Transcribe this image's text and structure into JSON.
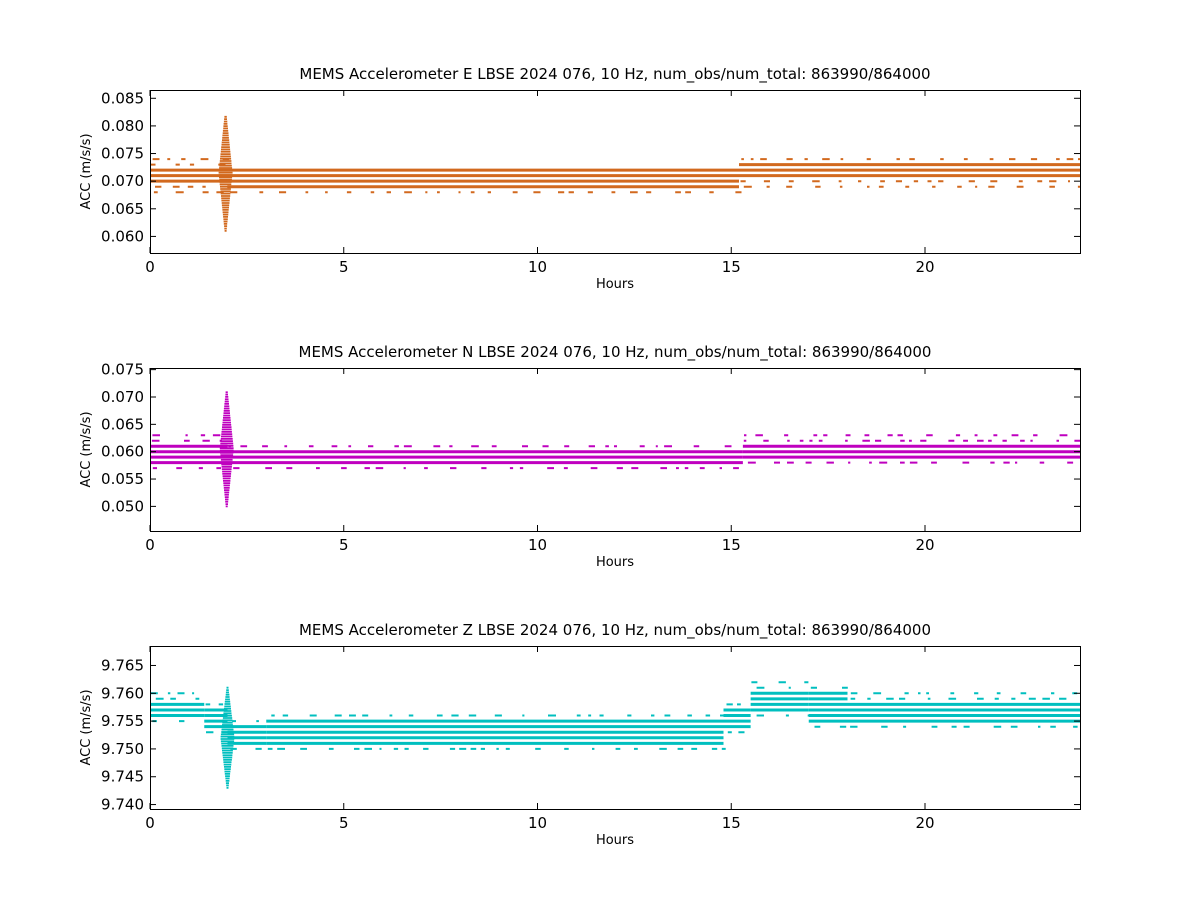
{
  "chart_data": [
    {
      "type": "scatter",
      "title": "MEMS Accelerometer E LBSE 2024 076, 10 Hz, num_obs/num_total: 863990/864000",
      "xlabel": "Hours",
      "ylabel": "ACC (m/s/s)",
      "xlim": [
        0,
        24
      ],
      "ylim": [
        0.057,
        0.0865
      ],
      "xticks": [
        0,
        5,
        10,
        15,
        20
      ],
      "yticks": [
        "0.060",
        "0.065",
        "0.070",
        "0.075",
        "0.080",
        "0.085"
      ],
      "grid": false,
      "color": "#d2691e",
      "series": [
        {
          "segments": [
            {
              "x": [
                0,
                2.0
              ],
              "dense": [
                0.07,
                0.071,
                0.072
              ],
              "sparse": [
                0.068,
                0.069,
                0.073,
                0.074
              ]
            },
            {
              "x": [
                2.0,
                15.2
              ],
              "dense": [
                0.069,
                0.07,
                0.071,
                0.072
              ],
              "sparse": [
                0.068
              ]
            },
            {
              "x": [
                15.2,
                24
              ],
              "dense": [
                0.071,
                0.072,
                0.073
              ],
              "sparse": [
                0.069,
                0.07,
                0.074
              ]
            }
          ],
          "burst": {
            "x": 1.95,
            "min": 0.061,
            "max": 0.082
          }
        }
      ]
    },
    {
      "type": "scatter",
      "title": "MEMS Accelerometer N LBSE 2024 076, 10 Hz, num_obs/num_total: 863990/864000",
      "xlabel": "Hours",
      "ylabel": "ACC (m/s/s)",
      "xlim": [
        0,
        24
      ],
      "ylim": [
        0.0455,
        0.0753
      ],
      "xticks": [
        0,
        5,
        10,
        15,
        20
      ],
      "yticks": [
        "0.050",
        "0.055",
        "0.060",
        "0.065",
        "0.070",
        "0.075"
      ],
      "grid": false,
      "color": "#bf00bf",
      "series": [
        {
          "segments": [
            {
              "x": [
                0,
                2.0
              ],
              "dense": [
                0.058,
                0.059,
                0.06,
                0.061
              ],
              "sparse": [
                0.057,
                0.062,
                0.063
              ]
            },
            {
              "x": [
                2.0,
                15.3
              ],
              "dense": [
                0.058,
                0.059,
                0.06
              ],
              "sparse": [
                0.057,
                0.061
              ]
            },
            {
              "x": [
                15.3,
                24
              ],
              "dense": [
                0.059,
                0.06,
                0.061
              ],
              "sparse": [
                0.058,
                0.062,
                0.063
              ]
            }
          ],
          "burst": {
            "x": 1.98,
            "min": 0.05,
            "max": 0.071
          }
        }
      ]
    },
    {
      "type": "scatter",
      "title": "MEMS Accelerometer Z LBSE 2024 076, 10 Hz, num_obs/num_total: 863990/864000",
      "xlabel": "Hours",
      "ylabel": "ACC (m/s/s)",
      "xlim": [
        0,
        24
      ],
      "ylim": [
        9.7392,
        9.7685
      ],
      "xticks": [
        0,
        5,
        10,
        15,
        20
      ],
      "yticks": [
        "9.740",
        "9.745",
        "9.750",
        "9.755",
        "9.760",
        "9.765"
      ],
      "grid": false,
      "color": "#00bfbf",
      "series": [
        {
          "segments": [
            {
              "x": [
                0,
                1.4
              ],
              "dense": [
                9.756,
                9.757,
                9.758
              ],
              "sparse": [
                9.755,
                9.759,
                9.76
              ]
            },
            {
              "x": [
                1.4,
                2.0
              ],
              "dense": [
                9.754,
                9.755,
                9.756,
                9.757
              ],
              "sparse": [
                9.753,
                9.758
              ]
            },
            {
              "x": [
                2.0,
                3.0
              ],
              "dense": [
                9.751,
                9.752,
                9.753,
                9.754
              ],
              "sparse": [
                9.75,
                9.755
              ]
            },
            {
              "x": [
                3.0,
                14.8
              ],
              "dense": [
                9.751,
                9.752,
                9.753,
                9.754,
                9.755
              ],
              "sparse": [
                9.75,
                9.756
              ]
            },
            {
              "x": [
                14.8,
                15.5
              ],
              "dense": [
                9.754,
                9.755,
                9.756,
                9.757
              ],
              "sparse": [
                9.753,
                9.758
              ]
            },
            {
              "x": [
                15.5,
                17.0
              ],
              "dense": [
                9.757,
                9.758,
                9.759,
                9.76
              ],
              "sparse": [
                9.756,
                9.761,
                9.762
              ]
            },
            {
              "x": [
                17.0,
                18.0
              ],
              "dense": [
                9.755,
                9.756,
                9.757,
                9.758,
                9.759,
                9.76
              ],
              "sparse": [
                9.754,
                9.761
              ]
            },
            {
              "x": [
                18.0,
                24
              ],
              "dense": [
                9.755,
                9.756,
                9.757,
                9.758
              ],
              "sparse": [
                9.754,
                9.759,
                9.76
              ]
            }
          ],
          "burst": {
            "x": 2.0,
            "min": 9.743,
            "max": 9.761
          }
        }
      ]
    }
  ]
}
